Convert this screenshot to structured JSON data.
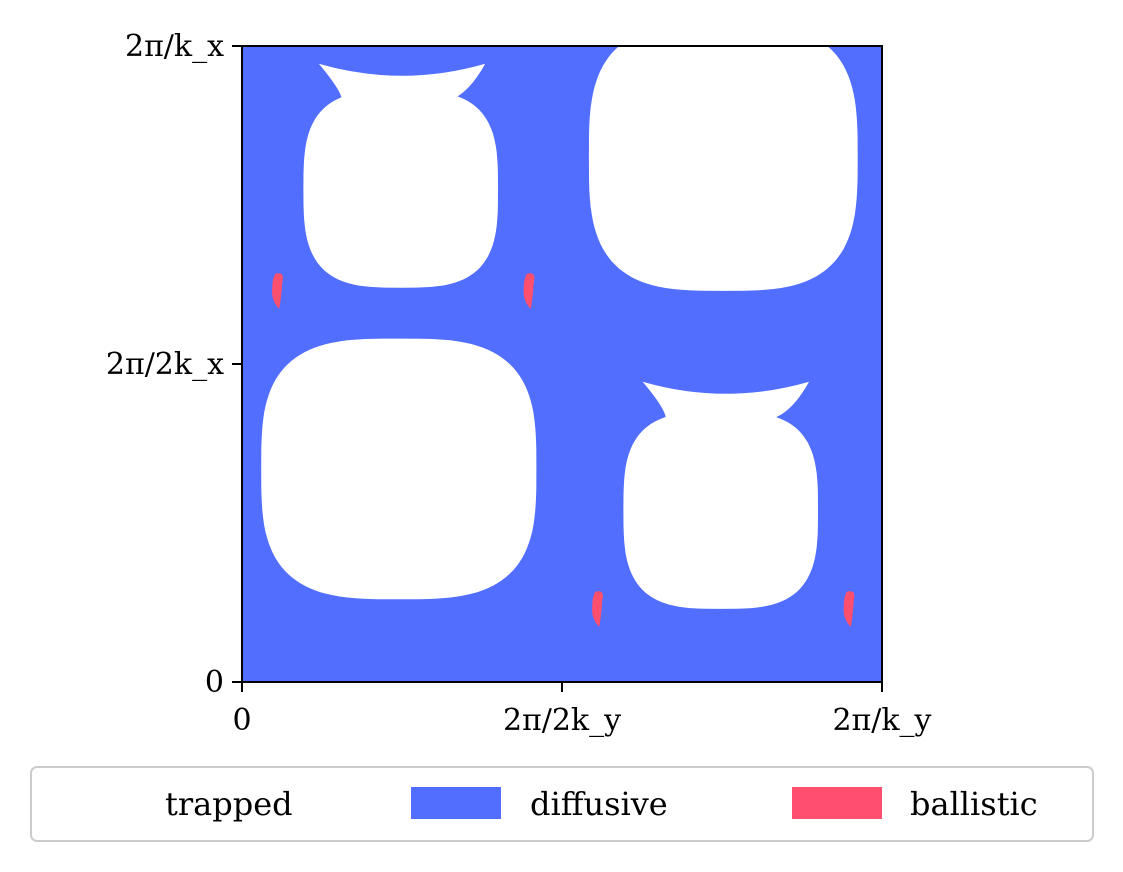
{
  "chart_data": {
    "type": "heatmap",
    "title": "",
    "xlabel": "",
    "ylabel": "",
    "x_ticks": [
      "0",
      "2π/2k_y",
      "2π/k_y"
    ],
    "y_ticks": [
      "0",
      "2π/2k_x",
      "2π/k_x"
    ],
    "xlim": [
      0,
      1
    ],
    "ylim": [
      0,
      1
    ],
    "grid": false,
    "legend_position": "bottom",
    "categories": [
      {
        "name": "trapped",
        "color": "#ffffff"
      },
      {
        "name": "diffusive",
        "color": "#516efe"
      },
      {
        "name": "ballistic",
        "color": "#ff4f6e"
      }
    ],
    "background_category": "diffusive",
    "trapped_regions": [
      {
        "shape": "superellipse",
        "cx": 0.245,
        "cy": 0.665,
        "rx": 0.215,
        "ry": 0.205
      },
      {
        "shape": "superellipse",
        "cx": 0.752,
        "cy": 0.175,
        "rx": 0.21,
        "ry": 0.21
      },
      {
        "shape": "superellipse",
        "cx": 0.748,
        "cy": 0.73,
        "rx": 0.152,
        "ry": 0.155
      },
      {
        "shape": "superellipse",
        "cx": 0.248,
        "cy": 0.225,
        "rx": 0.152,
        "ry": 0.155
      },
      {
        "shape": "crescent",
        "cx": 0.756,
        "cy": 0.55,
        "width": 0.26
      },
      {
        "shape": "crescent",
        "cx": 0.25,
        "cy": 0.05,
        "width": 0.26
      }
    ],
    "ballistic_regions": [
      {
        "cx": 0.555,
        "cy": 0.885
      },
      {
        "cx": 0.948,
        "cy": 0.885
      },
      {
        "cx": 0.055,
        "cy": 0.385
      },
      {
        "cx": 0.448,
        "cy": 0.385
      }
    ]
  }
}
